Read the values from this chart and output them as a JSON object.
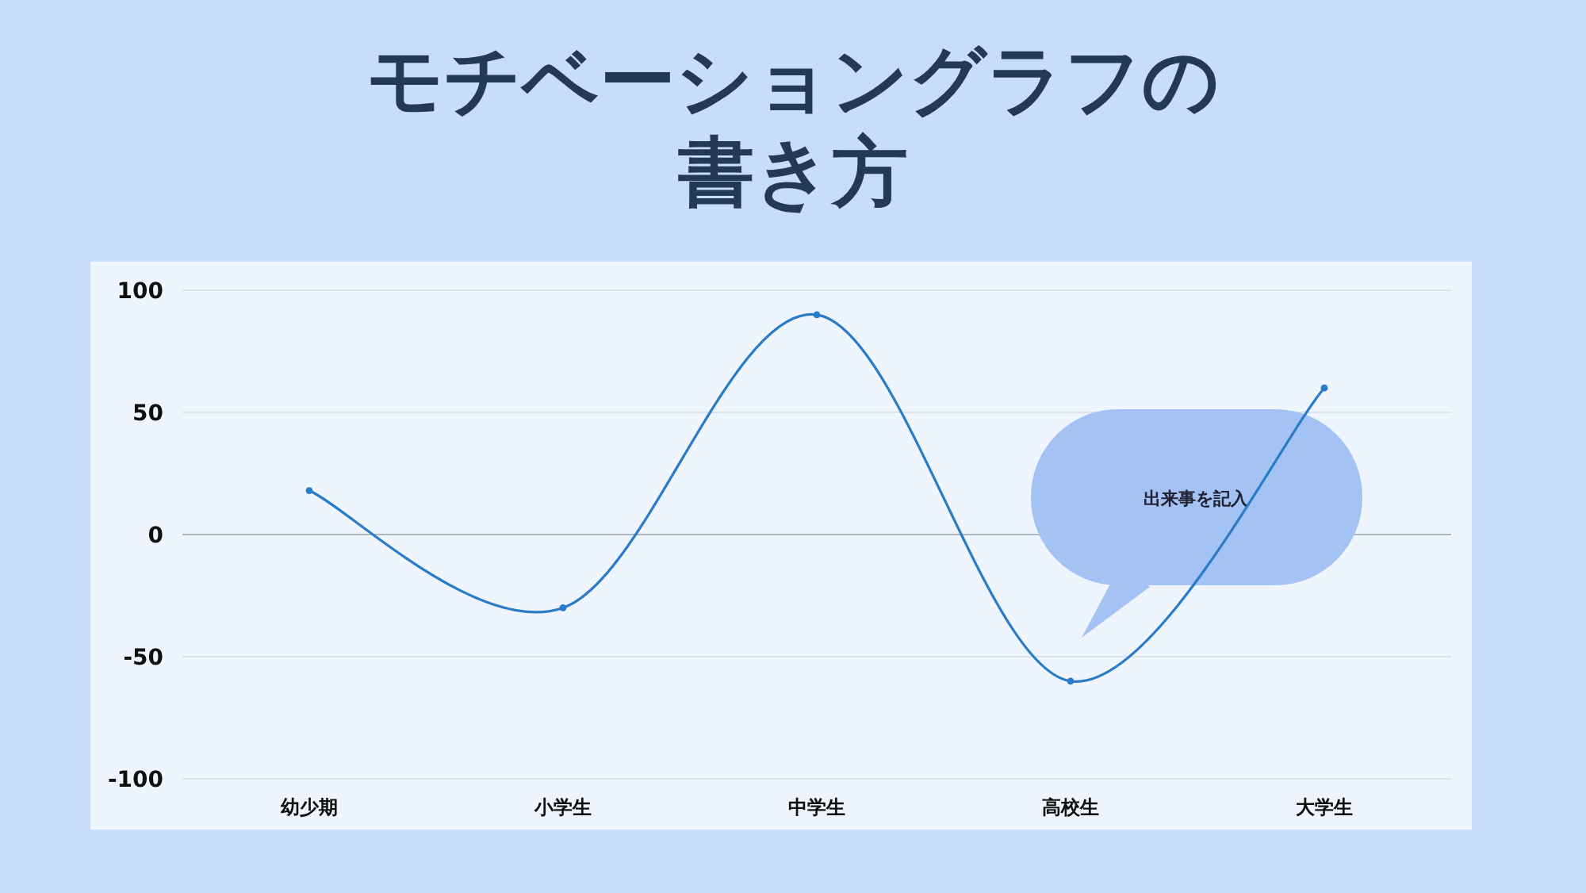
{
  "chart_data": {
    "type": "line",
    "title": "モチベーショングラフの書き方",
    "categories": [
      "幼少期",
      "小学生",
      "中学生",
      "高校生",
      "大学生"
    ],
    "series": [
      {
        "color": "#2a7bc8",
        "values": [
          18,
          -30,
          90,
          -60,
          60
        ]
      }
    ],
    "ylim": [
      -100,
      100
    ],
    "yticks": [
      -100,
      -50,
      0,
      50,
      100
    ],
    "grid": "y",
    "marker": "circle",
    "line_style": "solid",
    "annotations": [
      "出来事を記入"
    ]
  }
}
